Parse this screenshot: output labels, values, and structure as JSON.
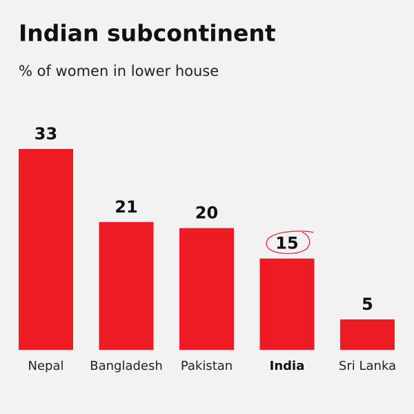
{
  "chart_data": {
    "type": "bar",
    "title": "Indian subcontinent",
    "subtitle": "% of women in lower house",
    "categories": [
      "Nepal",
      "Bangladesh",
      "Pakistan",
      "India",
      "Sri Lanka"
    ],
    "values": [
      33,
      21,
      20,
      15,
      5
    ],
    "color": "#ed1c24",
    "highlight": "India"
  }
}
